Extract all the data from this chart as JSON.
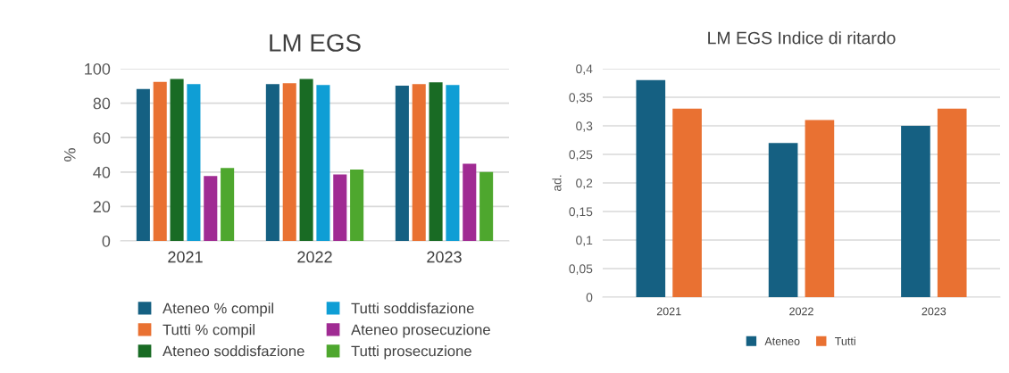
{
  "chart_data": [
    {
      "type": "bar",
      "title": "LM EGS",
      "ylabel": "%",
      "categories": [
        "2021",
        "2022",
        "2023"
      ],
      "series": [
        {
          "name": "Ateneo % compil",
          "color": "#156082",
          "values": [
            88.2,
            91.1,
            90.2
          ]
        },
        {
          "name": "Tutti % compil",
          "color": "#e97132",
          "values": [
            92.4,
            91.6,
            91.1
          ]
        },
        {
          "name": "Ateneo soddisfazione",
          "color": "#196b24",
          "values": [
            94.0,
            94.0,
            92.1
          ]
        },
        {
          "name": "Tutti soddisfazione",
          "color": "#0f9ed5",
          "values": [
            91.1,
            90.6,
            90.6
          ]
        },
        {
          "name": "Ateneo prosecuzione",
          "color": "#a02b93",
          "values": [
            37.7,
            38.6,
            44.8
          ]
        },
        {
          "name": "Tutti prosecuzione",
          "color": "#4ea72e",
          "values": [
            42.4,
            41.5,
            40.0
          ]
        }
      ],
      "ylim": [
        0,
        100
      ],
      "yticks": [
        0,
        20,
        40,
        60,
        80,
        100
      ],
      "grid": "y",
      "legend": "bottom"
    },
    {
      "type": "bar",
      "title": "LM EGS Indice di ritardo",
      "ylabel": "ad.",
      "categories": [
        "2021",
        "2022",
        "2023"
      ],
      "series": [
        {
          "name": "Ateneo",
          "color": "#156082",
          "values": [
            0.38,
            0.27,
            0.3
          ]
        },
        {
          "name": "Tutti",
          "color": "#e97132",
          "values": [
            0.33,
            0.31,
            0.33
          ]
        }
      ],
      "ylim": [
        0,
        0.4
      ],
      "yticks": [
        0,
        {
          "value": 0.05,
          "label": "0,05"
        },
        {
          "value": 0.1,
          "label": "0,1"
        },
        {
          "value": 0.15,
          "label": "0,15"
        },
        {
          "value": 0.2,
          "label": "0,2"
        },
        {
          "value": 0.25,
          "label": "0,25"
        },
        {
          "value": 0.3,
          "label": "0,3"
        },
        {
          "value": 0.35,
          "label": "0,35"
        },
        {
          "value": 0.4,
          "label": "0,4"
        }
      ],
      "grid": "y",
      "legend": "bottom"
    }
  ]
}
